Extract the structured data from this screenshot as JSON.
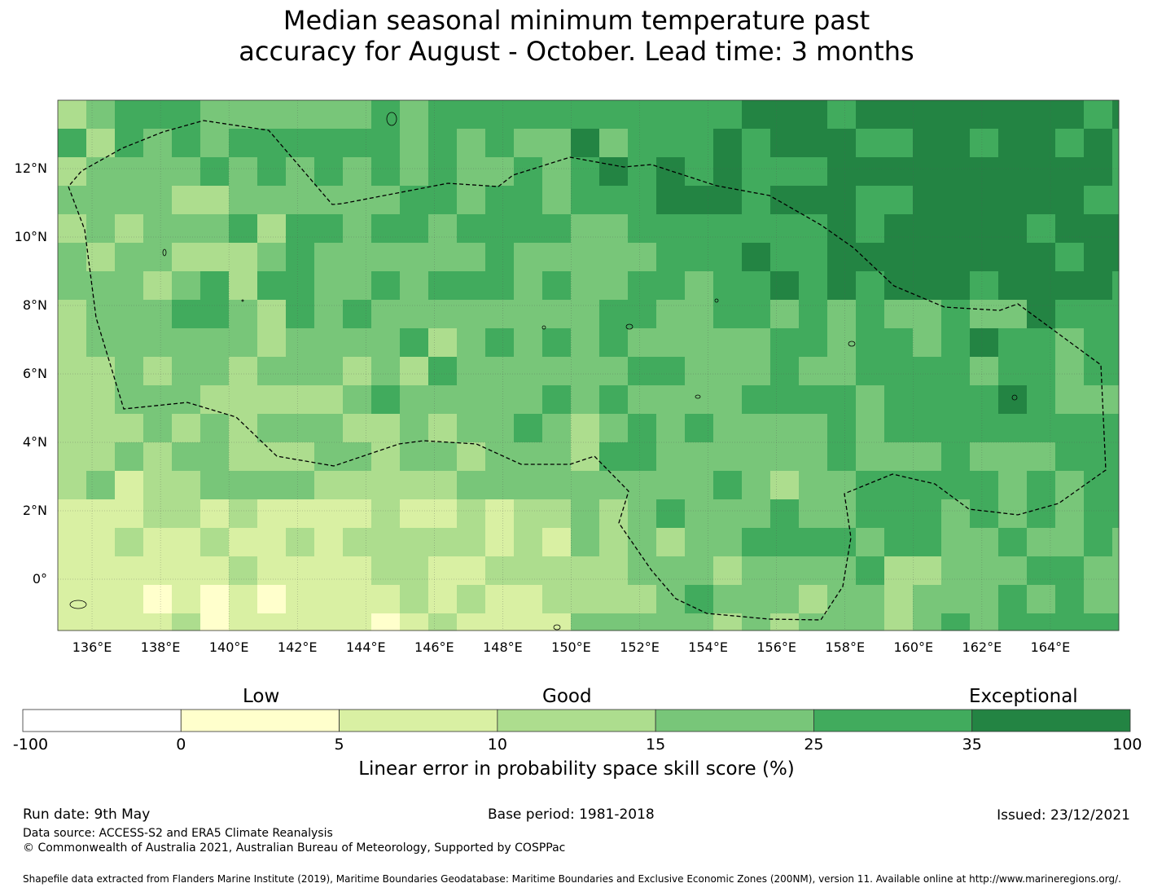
{
  "title": {
    "line1": "Median seasonal minimum temperature past",
    "line2": "accuracy for August - October. Lead time: 3 months"
  },
  "map": {
    "lon_range": [
      135,
      166
    ],
    "lat_range": [
      -1.5,
      14
    ],
    "x_ticks": [
      "136°E",
      "138°E",
      "140°E",
      "142°E",
      "144°E",
      "146°E",
      "148°E",
      "150°E",
      "152°E",
      "154°E",
      "156°E",
      "158°E",
      "160°E",
      "162°E",
      "164°E"
    ],
    "y_ticks": [
      "12°N",
      "10°N",
      "8°N",
      "6°N",
      "4°N",
      "2°N",
      "0°"
    ],
    "grid": true,
    "boundary": "dashed EEZ outline",
    "colors": [
      "#ffffcc",
      "#d9f0a3",
      "#addd8e",
      "#78c679",
      "#41ab5d",
      "#238443"
    ]
  },
  "colorbar": {
    "categories": [
      "Low",
      "Good",
      "Exceptional"
    ],
    "ticks": [
      "-100",
      "0",
      "5",
      "10",
      "15",
      "25",
      "35",
      "100"
    ],
    "colors": [
      "#ffffff",
      "#ffffcc",
      "#d9f0a3",
      "#addd8e",
      "#78c679",
      "#41ab5d",
      "#238443"
    ],
    "label": "Linear error in probability space skill score (%)"
  },
  "footer": {
    "run_date": "Run date: 9th May",
    "base_period": "Base period: 1981-2018",
    "issued": "Issued: 23/12/2021",
    "data_source": "Data source: ACCESS-S2 and ERA5 Climate Reanalysis",
    "copyright": "© Commonwealth of Australia 2021, Australian Bureau of Meteorology, Supported by COSPPac",
    "shapefile": "Shapefile data extracted from Flanders Marine Institute (2019), Maritime Boundaries Geodatabase: Maritime Boundaries and Exclusive Economic Zones (200NM), version 11. Available online at http://www.marineregions.org/."
  }
}
